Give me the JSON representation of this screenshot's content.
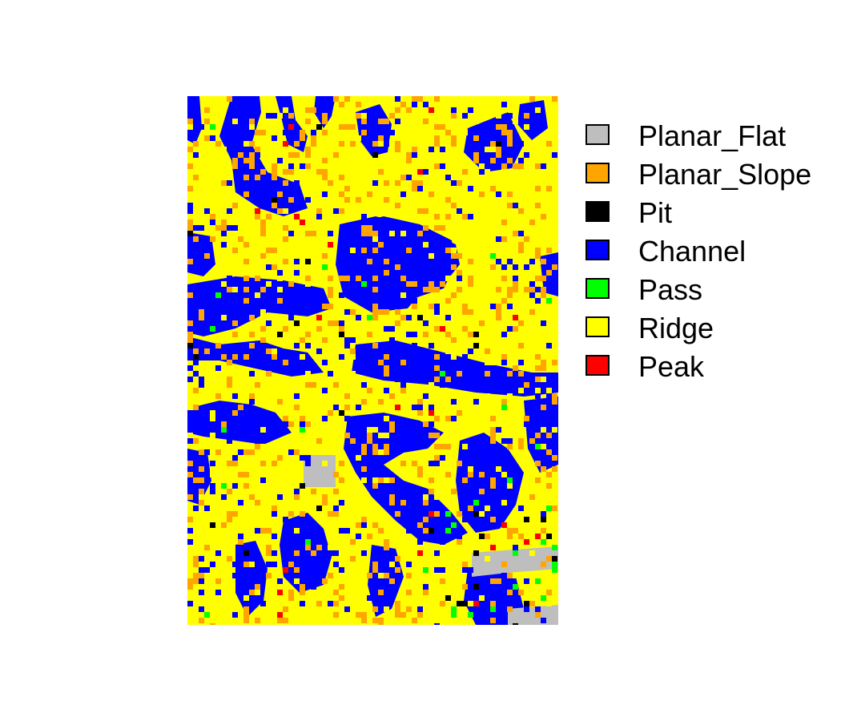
{
  "map": {
    "description_type": "morphometric classification raster",
    "background_class": "Ridge"
  },
  "legend": {
    "items": [
      {
        "label": "Planar_Flat",
        "color": "#bebebe"
      },
      {
        "label": "Planar_Slope",
        "color": "#ffa500"
      },
      {
        "label": "Pit",
        "color": "#000000"
      },
      {
        "label": "Channel",
        "color": "#0000ff"
      },
      {
        "label": "Pass",
        "color": "#00ff00"
      },
      {
        "label": "Ridge",
        "color": "#ffff00"
      },
      {
        "label": "Peak",
        "color": "#ff0000"
      }
    ]
  }
}
